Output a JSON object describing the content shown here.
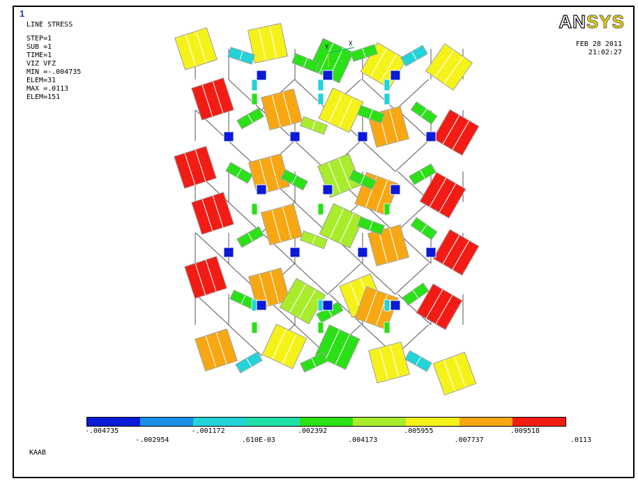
{
  "window": {
    "number": "1"
  },
  "info_lines": [
    "LINE STRESS",
    "STEP=1",
    "SUB =1",
    "TIME=1",
    "VIZ      VFZ",
    "MIN =-.004735",
    "ELEM=31",
    "MAX =.0113",
    "ELEM=151"
  ],
  "logo": {
    "part1": "AN",
    "part2": "SYS"
  },
  "date": "FEB 28 2011",
  "time": "21:02:27",
  "axis": {
    "y_label": "Y",
    "x_label": "X"
  },
  "colorbar": {
    "colors": [
      "#0a1ad6",
      "#1b8fe6",
      "#22d3d8",
      "#1fe0a6",
      "#2ae016",
      "#a8ec2c",
      "#f5f21a",
      "#f7a712",
      "#f21c14"
    ],
    "labels_top": [
      "-.004735",
      "-.001172",
      ".002392",
      ".005955",
      ".009518"
    ],
    "labels_bottom": [
      "-.002954",
      ".610E-03",
      ".004173",
      ".007737",
      ".0113"
    ]
  },
  "model_label": "KAAB"
}
